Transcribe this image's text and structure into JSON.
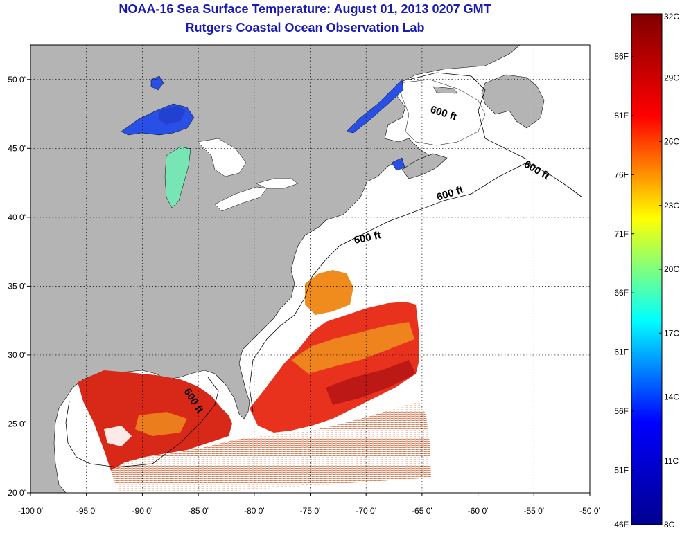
{
  "title": {
    "line1": "NOAA-16 Sea Surface Temperature:  August 01, 2013 0207 GMT",
    "line2": "Rutgers Coastal Ocean Observation Lab"
  },
  "map": {
    "lon_range": [
      -100,
      -50
    ],
    "lat_range": [
      20,
      52.5
    ],
    "x_ticks": [
      "-100 0'",
      "-95 0'",
      "-90 0'",
      "-85 0'",
      "-80 0'",
      "-75 0'",
      "-70 0'",
      "-65 0'",
      "-60 0'",
      "-55 0'",
      "-50 0'"
    ],
    "y_ticks": [
      "20 0'",
      "25 0'",
      "30 0'",
      "35 0'",
      "40 0'",
      "45 0'",
      "50 0'"
    ],
    "depth_contour_labels": [
      "600 ft",
      "600 ft",
      "600 ft",
      "600 ft",
      "600 ft"
    ],
    "colors": {
      "land": "#b4b4b4",
      "ocean_no_data": "#ffffff",
      "warm_sst": "#e8321e",
      "hot_sst": "#c8141e",
      "mid_sst": "#f08c1e",
      "lake_cold": "#2850e6",
      "lake_cool": "#50b4e6",
      "lake_green": "#78e6b4"
    }
  },
  "colorbar": {
    "celsius_labels": [
      "32C",
      "29C",
      "26C",
      "23C",
      "20C",
      "17C",
      "14C",
      "11C",
      "8C"
    ],
    "fahrenheit_labels": [
      "86F",
      "81F",
      "76F",
      "71F",
      "66F",
      "61F",
      "56F",
      "51F",
      "46F"
    ],
    "range_c": [
      8,
      32
    ],
    "colormap": [
      "#00008f",
      "#0000ff",
      "#00ffff",
      "#ffff00",
      "#ff0000",
      "#800000"
    ]
  }
}
